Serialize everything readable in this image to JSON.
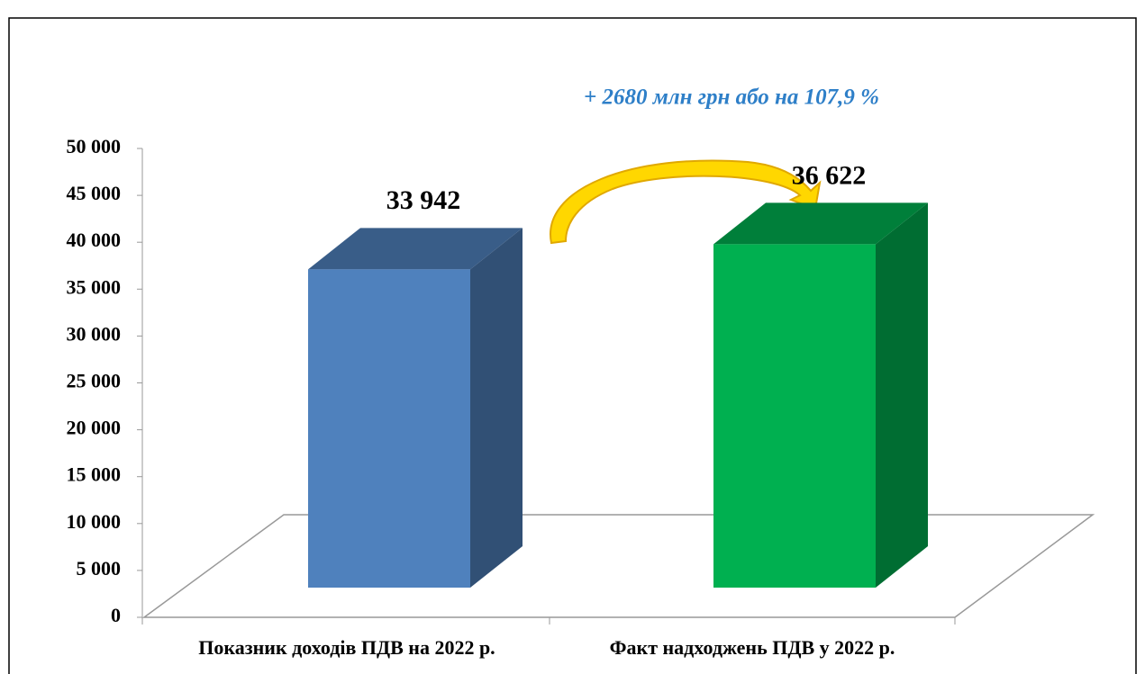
{
  "chart_data": {
    "type": "bar3d",
    "annotation": "+ 2680 млн грн або на 107,9 %",
    "categories": [
      "Показник доходів ПДВ на 2022 р.",
      "Факт надходжень  ПДВ у 2022 р."
    ],
    "series": [
      {
        "name": null,
        "values": [
          33942,
          36622
        ],
        "value_labels": [
          "33 942",
          "36 622"
        ],
        "colors": [
          "#4f81bd",
          "#00b050"
        ]
      }
    ],
    "ylim": [
      0,
      50000
    ],
    "yticks": [
      0,
      {
        "value": 5000,
        "label": "5 000"
      },
      {
        "value": 10000,
        "label": "10 000"
      },
      {
        "value": 15000,
        "label": "15 000"
      },
      {
        "value": 20000,
        "label": "20 000"
      },
      {
        "value": 25000,
        "label": "25 000"
      },
      {
        "value": 30000,
        "label": "30 000"
      },
      {
        "value": 35000,
        "label": "35 000"
      },
      {
        "value": 40000,
        "label": "40 000"
      },
      {
        "value": 45000,
        "label": "45 000"
      },
      {
        "value": 50000,
        "label": "50 000"
      }
    ]
  }
}
